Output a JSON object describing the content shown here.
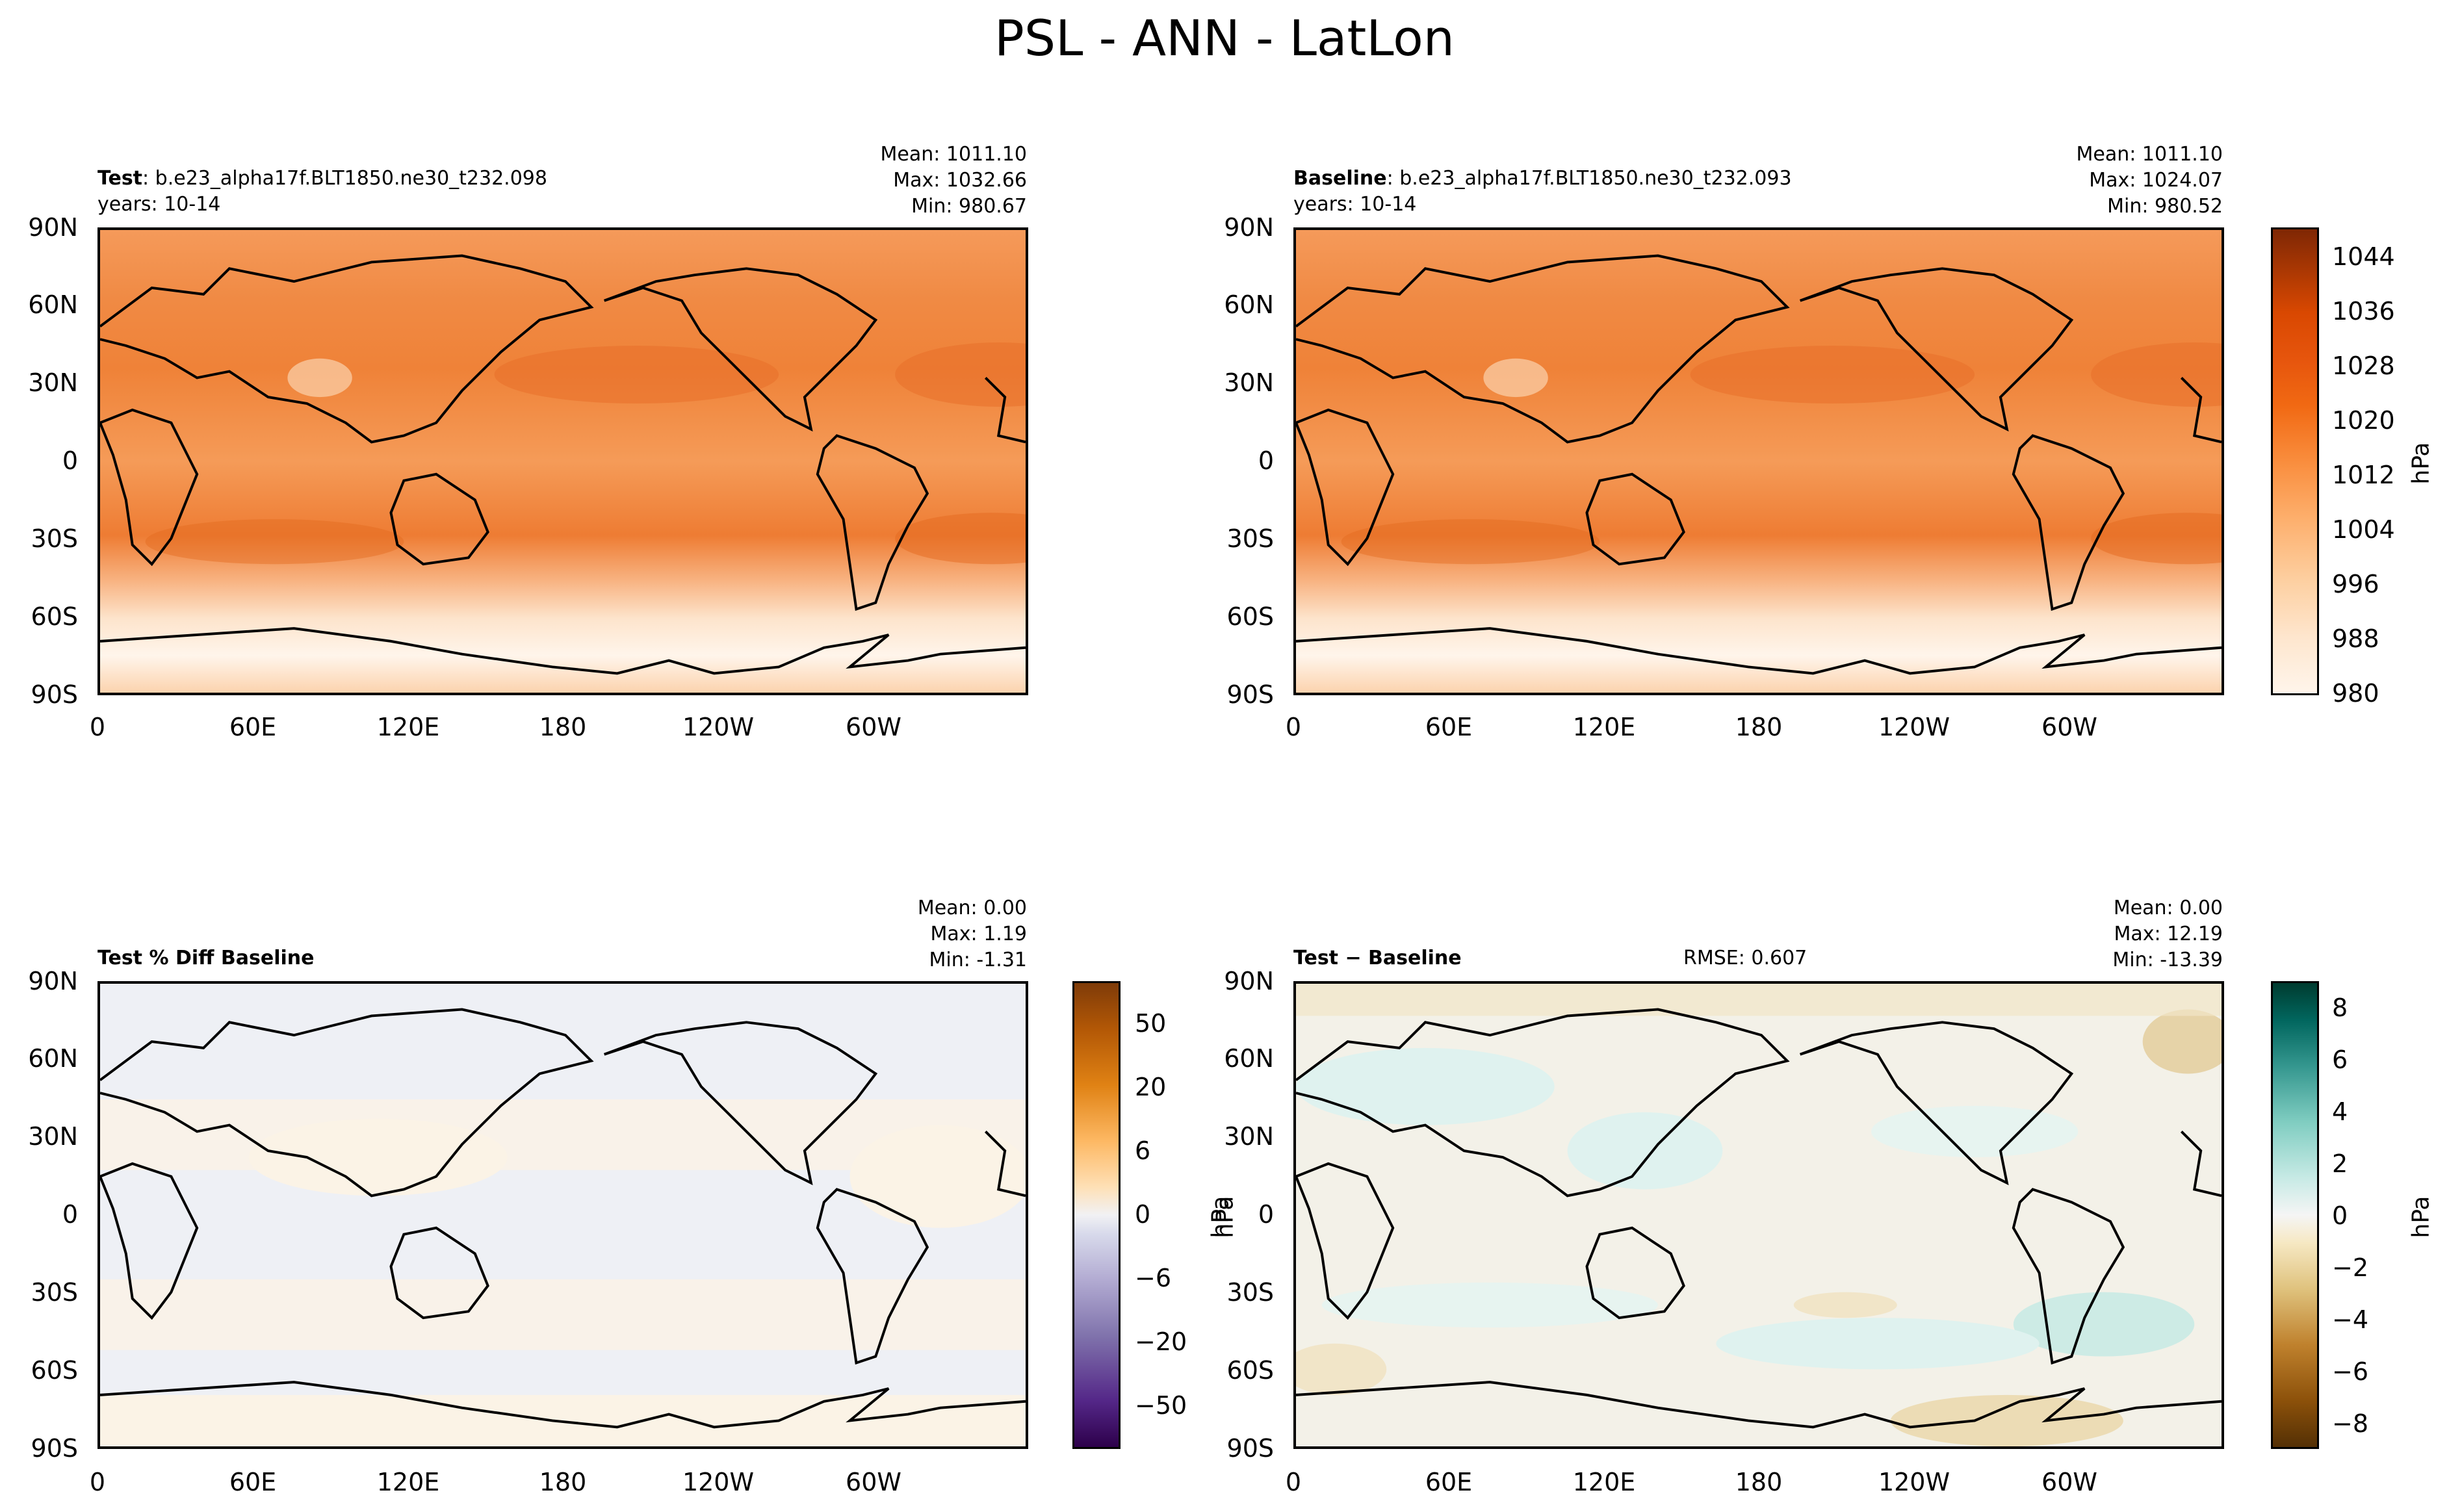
{
  "figure": {
    "suptitle": "PSL - ANN - LatLon"
  },
  "chart_data": [
    {
      "type": "contour-map",
      "panel": "test",
      "title_bold": "Test",
      "title_rest": ": b.e23_alpha17f.BLT1850.ne30_t232.098",
      "subtitle": "years: 10-14",
      "stats": [
        "Mean: 1011.10",
        "Max: 1032.66",
        "Min: 980.67"
      ],
      "ylabels": [
        "90N",
        "60N",
        "30N",
        "0",
        "30S",
        "60S",
        "90S"
      ],
      "xlabels": [
        "0",
        "60E",
        "120E",
        "180",
        "120W",
        "60W"
      ],
      "colormap": "Oranges",
      "value_range": [
        980,
        1044
      ]
    },
    {
      "type": "contour-map",
      "panel": "baseline",
      "title_bold": "Baseline",
      "title_rest": ": b.e23_alpha17f.BLT1850.ne30_t232.093",
      "subtitle": "years: 10-14",
      "stats": [
        "Mean: 1011.10",
        "Max: 1024.07",
        "Min: 980.52"
      ],
      "ylabels": [
        "90N",
        "60N",
        "30N",
        "0",
        "30S",
        "60S",
        "90S"
      ],
      "xlabels": [
        "0",
        "60E",
        "120E",
        "180",
        "120W",
        "60W"
      ],
      "colormap": "Oranges",
      "colorbar": {
        "ticks": [
          "1044",
          "1036",
          "1028",
          "1020",
          "1012",
          "1004",
          "996",
          "988",
          "980"
        ],
        "unit": "hPa"
      }
    },
    {
      "type": "contour-map",
      "panel": "pct_diff",
      "title_bold": "Test % Diff Baseline",
      "stats": [
        "Mean:  0.00",
        "Max:  1.19",
        "Min: -1.31"
      ],
      "ylabels": [
        "90N",
        "60N",
        "30N",
        "0",
        "30S",
        "60S",
        "90S"
      ],
      "xlabels": [
        "0",
        "60E",
        "120E",
        "180",
        "120W",
        "60W"
      ],
      "colormap": "PuOr_r",
      "colorbar": {
        "ticks": [
          "50",
          "20",
          "6",
          "0",
          "−6",
          "−20",
          "−50"
        ],
        "unit": "hPa"
      }
    },
    {
      "type": "contour-map",
      "panel": "diff",
      "title_bold": "Test − Baseline",
      "rmse": "RMSE: 0.607",
      "stats": [
        "Mean:  0.00",
        "Max: 12.19",
        "Min: -13.39"
      ],
      "ylabels": [
        "90N",
        "60N",
        "30N",
        "0",
        "30S",
        "60S",
        "90S"
      ],
      "xlabels": [
        "0",
        "60E",
        "120E",
        "180",
        "120W",
        "60W"
      ],
      "colormap": "BrBG",
      "colorbar": {
        "ticks": [
          "8",
          "6",
          "4",
          "2",
          "0",
          "−2",
          "−4",
          "−6",
          "−8"
        ],
        "unit": "hPa"
      }
    }
  ],
  "colors": {
    "oranges_low": "#fff5eb",
    "oranges_high": "#7f2704",
    "diff_neutral": "#eef0f5",
    "diff_warm": "#fbf3e6",
    "diff_teal": "#dff2ef",
    "diff_tan": "#f1e5c8"
  }
}
